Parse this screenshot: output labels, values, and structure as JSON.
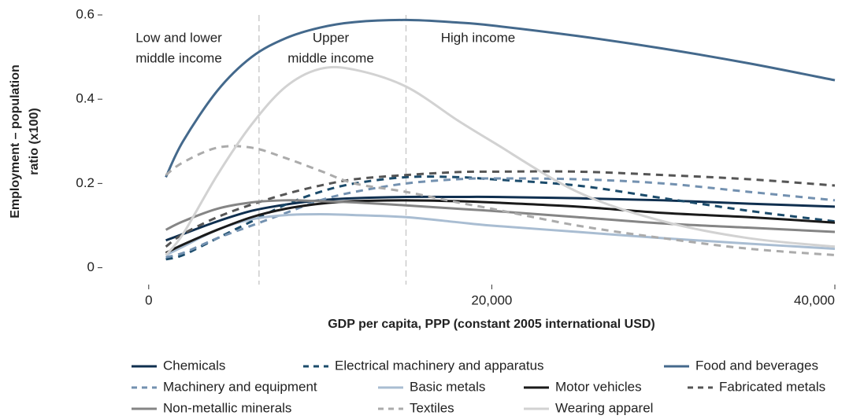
{
  "chart_data": {
    "type": "line",
    "xlabel": "GDP per capita, PPP (constant 2005 international USD)",
    "ylabel": [
      "Employment – population",
      "ratio (x100)"
    ],
    "annotations": [
      [
        "Low and lower",
        "middle income"
      ],
      [
        "Upper",
        "middle income"
      ],
      [
        "High income"
      ]
    ],
    "region_boundaries": [
      6430,
      15000
    ],
    "x": [
      1000,
      2000,
      4000,
      6000,
      8000,
      10000,
      12000,
      15000,
      18000,
      20000,
      25000,
      30000,
      35000,
      40000
    ],
    "xlim": [
      -2700,
      40000
    ],
    "xticks": [
      0,
      {
        "value": 20000,
        "label": "20,000"
      },
      {
        "value": 40000,
        "label": "40,000"
      }
    ],
    "ylim": [
      -0.04,
      0.6
    ],
    "yticks": [
      0,
      0.2,
      0.4,
      0.6
    ],
    "series": [
      {
        "name": "Chemicals",
        "color": "#0f2f4f",
        "style": "solid",
        "values": [
          0.065,
          0.08,
          0.11,
          0.135,
          0.15,
          0.16,
          0.165,
          0.168,
          0.168,
          0.168,
          0.165,
          0.16,
          0.152,
          0.145
        ]
      },
      {
        "name": "Electrical machinery and apparatus",
        "color": "#1b4b6b",
        "style": "dashed",
        "values": [
          0.02,
          0.03,
          0.07,
          0.11,
          0.15,
          0.18,
          0.2,
          0.215,
          0.215,
          0.21,
          0.195,
          0.165,
          0.135,
          0.11
        ]
      },
      {
        "name": "Food and beverages",
        "color": "#44698c",
        "style": "solid",
        "values": [
          0.215,
          0.3,
          0.42,
          0.5,
          0.545,
          0.57,
          0.583,
          0.588,
          0.582,
          0.575,
          0.55,
          0.52,
          0.485,
          0.445
        ]
      },
      {
        "name": "Machinery and equipment",
        "color": "#7391b0",
        "style": "dashed",
        "values": [
          0.025,
          0.035,
          0.07,
          0.1,
          0.13,
          0.16,
          0.18,
          0.2,
          0.21,
          0.212,
          0.21,
          0.2,
          0.18,
          0.16
        ]
      },
      {
        "name": "Basic metals",
        "color": "#a9bdd2",
        "style": "solid",
        "values": [
          0.03,
          0.05,
          0.09,
          0.115,
          0.125,
          0.127,
          0.125,
          0.12,
          0.108,
          0.1,
          0.085,
          0.07,
          0.057,
          0.045
        ]
      },
      {
        "name": "Motor vehicles",
        "color": "#1a1a1a",
        "style": "solid",
        "values": [
          0.035,
          0.055,
          0.09,
          0.12,
          0.14,
          0.152,
          0.158,
          0.16,
          0.158,
          0.155,
          0.145,
          0.13,
          0.12,
          0.107
        ]
      },
      {
        "name": "Fabricated metals",
        "color": "#555555",
        "style": "dashed",
        "values": [
          0.05,
          0.08,
          0.12,
          0.15,
          0.175,
          0.195,
          0.21,
          0.22,
          0.227,
          0.228,
          0.228,
          0.22,
          0.21,
          0.195
        ]
      },
      {
        "name": "Non-metallic minerals",
        "color": "#858585",
        "style": "solid",
        "values": [
          0.09,
          0.11,
          0.14,
          0.155,
          0.16,
          0.158,
          0.155,
          0.148,
          0.14,
          0.135,
          0.12,
          0.105,
          0.095,
          0.085
        ]
      },
      {
        "name": "Textiles",
        "color": "#ababab",
        "style": "dashed",
        "values": [
          0.22,
          0.25,
          0.285,
          0.285,
          0.26,
          0.23,
          0.2,
          0.18,
          0.155,
          0.14,
          0.1,
          0.07,
          0.045,
          0.03
        ]
      },
      {
        "name": "Wearing apparel",
        "color": "#d2d2d2",
        "style": "solid",
        "values": [
          0.03,
          0.08,
          0.22,
          0.34,
          0.43,
          0.472,
          0.47,
          0.43,
          0.35,
          0.3,
          0.18,
          0.11,
          0.07,
          0.05
        ]
      }
    ]
  }
}
